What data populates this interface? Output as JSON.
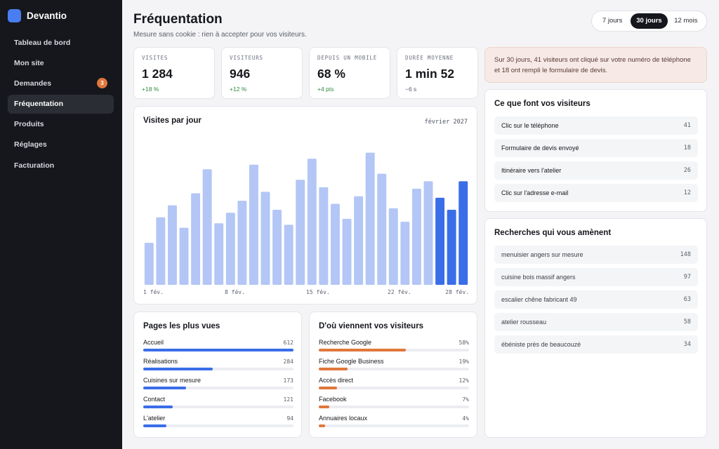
{
  "brand": {
    "name": "Devantio"
  },
  "nav": [
    {
      "label": "Tableau de bord",
      "active": false,
      "badge": ""
    },
    {
      "label": "Mon site",
      "active": false,
      "badge": ""
    },
    {
      "label": "Demandes",
      "active": false,
      "badge": "3"
    },
    {
      "label": "Fréquentation",
      "active": true,
      "badge": ""
    },
    {
      "label": "Produits",
      "active": false,
      "badge": ""
    },
    {
      "label": "Réglages",
      "active": false,
      "badge": ""
    },
    {
      "label": "Facturation",
      "active": false,
      "badge": ""
    }
  ],
  "header": {
    "title": "Fréquentation",
    "subtitle": "Mesure sans cookie : rien à accepter pour vos visiteurs.",
    "ranges": [
      {
        "label": "7 jours",
        "active": false
      },
      {
        "label": "30 jours",
        "active": true
      },
      {
        "label": "12 mois",
        "active": false
      }
    ]
  },
  "kpis": [
    {
      "label": "Visites",
      "value": "1 284",
      "delta": "+18 %",
      "tone": "positive"
    },
    {
      "label": "Visiteurs",
      "value": "946",
      "delta": "+12 %",
      "tone": "positive"
    },
    {
      "label": "Depuis un mobile",
      "value": "68 %",
      "delta": "+4 pts",
      "tone": "positive"
    },
    {
      "label": "Durée moyenne",
      "value": "1 min 52",
      "delta": "−6 s",
      "tone": "neutral"
    }
  ],
  "alert": {
    "text": "Sur 30 jours, 41 visiteurs ont cliqué sur votre numéro de téléphone et 18 ont rempli le formulaire de devis."
  },
  "chart_data": {
    "type": "bar",
    "title": "Visites par jour",
    "period": "février 2027",
    "x_tick_labels": [
      "1 fév.",
      "8 fév.",
      "15 fév.",
      "22 fév.",
      "28 fév."
    ],
    "values": [
      28,
      45,
      53,
      38,
      61,
      77,
      41,
      48,
      56,
      80,
      62,
      50,
      40,
      70,
      84,
      65,
      54,
      44,
      59,
      88,
      74,
      51,
      42,
      64,
      69,
      58,
      50,
      69
    ],
    "highlight_last": 3,
    "colors": {
      "normal": "#b3c6f5",
      "highlight": "#3a6ee8"
    },
    "ylim": [
      0,
      100
    ],
    "grid": false
  },
  "pages": {
    "title": "Pages les plus vues",
    "color": "#3a6ee8",
    "items": [
      {
        "label": "Accueil",
        "value": "612",
        "fraction": 1.0
      },
      {
        "label": "Réalisations",
        "value": "284",
        "fraction": 0.464
      },
      {
        "label": "Cuisines sur mesure",
        "value": "173",
        "fraction": 0.283
      },
      {
        "label": "Contact",
        "value": "121",
        "fraction": 0.198
      },
      {
        "label": "L'atelier",
        "value": "94",
        "fraction": 0.154
      }
    ]
  },
  "sources": {
    "title": "D'où viennent vos visiteurs",
    "color": "#e0773b",
    "items": [
      {
        "label": "Recherche Google",
        "value": "58%",
        "fraction": 0.58
      },
      {
        "label": "Fiche Google Business",
        "value": "19%",
        "fraction": 0.19
      },
      {
        "label": "Accès direct",
        "value": "12%",
        "fraction": 0.12
      },
      {
        "label": "Facebook",
        "value": "7%",
        "fraction": 0.07
      },
      {
        "label": "Annuaires locaux",
        "value": "4%",
        "fraction": 0.04
      }
    ]
  },
  "actions": {
    "title": "Ce que font vos visiteurs",
    "items": [
      {
        "label": "Clic sur le téléphone",
        "count": "41"
      },
      {
        "label": "Formulaire de devis envoyé",
        "count": "18"
      },
      {
        "label": "Itinéraire vers l'atelier",
        "count": "26"
      },
      {
        "label": "Clic sur l'adresse e-mail",
        "count": "12"
      }
    ]
  },
  "searches": {
    "title": "Recherches qui vous amènent",
    "items": [
      {
        "label": "menuisier angers sur mesure",
        "count": "148"
      },
      {
        "label": "cuisine bois massif angers",
        "count": "97"
      },
      {
        "label": "escalier chêne fabricant 49",
        "count": "63"
      },
      {
        "label": "atelier rousseau",
        "count": "58"
      },
      {
        "label": "ébéniste près de beaucouzé",
        "count": "34"
      }
    ]
  }
}
